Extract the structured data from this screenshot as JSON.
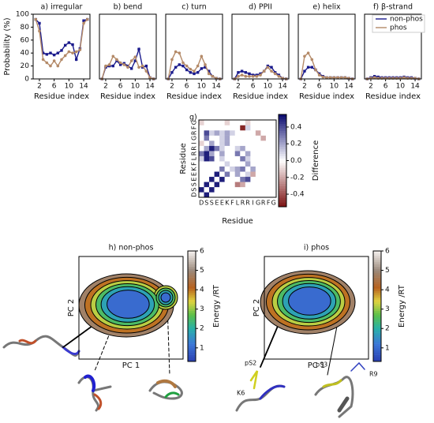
{
  "chart_data": [
    {
      "type": "line",
      "title": "a) irregular",
      "x_label": "Residue index",
      "y_label": "Probability (%)",
      "x": [
        1,
        2,
        3,
        4,
        5,
        6,
        7,
        8,
        9,
        10,
        11,
        12,
        13,
        14,
        15
      ],
      "xlim": [
        0.3,
        15.7
      ],
      "xticks": [
        2,
        6,
        10,
        14
      ],
      "ylim": [
        0,
        100
      ],
      "yticks": [
        0,
        20,
        40,
        60,
        80,
        100
      ],
      "series": [
        {
          "color": "#1a1a8c",
          "marker": "square",
          "values": [
            92,
            86,
            40,
            38,
            40,
            37,
            40,
            44,
            52,
            56,
            53,
            30,
            47,
            90,
            92
          ]
        },
        {
          "color": "#b48a68",
          "marker": "circle",
          "values": [
            92,
            74,
            30,
            25,
            20,
            28,
            20,
            30,
            36,
            42,
            40,
            42,
            45,
            86,
            92
          ]
        }
      ]
    },
    {
      "type": "line",
      "title": "b) bend",
      "x_label": "Residue index",
      "x": [
        1,
        2,
        3,
        4,
        5,
        6,
        7,
        8,
        9,
        10,
        11,
        12,
        13,
        14,
        15
      ],
      "xlim": [
        0.3,
        15.7
      ],
      "xticks": [
        2,
        6,
        10,
        14
      ],
      "ylim": [
        0,
        100
      ],
      "series": [
        {
          "color": "#1a1a8c",
          "marker": "square",
          "values": [
            0,
            18,
            20,
            20,
            28,
            22,
            24,
            20,
            16,
            28,
            46,
            18,
            20,
            2,
            0
          ]
        },
        {
          "color": "#b48a68",
          "marker": "circle",
          "values": [
            0,
            20,
            22,
            35,
            30,
            25,
            22,
            18,
            28,
            34,
            18,
            20,
            12,
            2,
            0
          ]
        }
      ]
    },
    {
      "type": "line",
      "title": "c) turn",
      "x_label": "Residue index",
      "x": [
        1,
        2,
        3,
        4,
        5,
        6,
        7,
        8,
        9,
        10,
        11,
        12,
        13,
        14,
        15
      ],
      "xlim": [
        0.3,
        15.7
      ],
      "xticks": [
        2,
        6,
        10,
        14
      ],
      "ylim": [
        0,
        100
      ],
      "series": [
        {
          "color": "#1a1a8c",
          "marker": "square",
          "values": [
            0,
            10,
            18,
            22,
            20,
            14,
            10,
            8,
            10,
            16,
            18,
            12,
            4,
            1,
            0
          ]
        },
        {
          "color": "#b48a68",
          "marker": "circle",
          "values": [
            0,
            30,
            42,
            40,
            25,
            20,
            15,
            12,
            20,
            35,
            22,
            8,
            4,
            1,
            0
          ]
        }
      ]
    },
    {
      "type": "line",
      "title": "d) PPII",
      "x_label": "Residue index",
      "x": [
        1,
        2,
        3,
        4,
        5,
        6,
        7,
        8,
        9,
        10,
        11,
        12,
        13,
        14,
        15
      ],
      "xlim": [
        0.3,
        15.7
      ],
      "xticks": [
        2,
        6,
        10,
        14
      ],
      "ylim": [
        0,
        100
      ],
      "series": [
        {
          "color": "#1a1a8c",
          "marker": "square",
          "values": [
            0,
            10,
            12,
            10,
            8,
            6,
            6,
            8,
            12,
            20,
            18,
            10,
            6,
            1,
            0
          ]
        },
        {
          "color": "#b48a68",
          "marker": "circle",
          "values": [
            0,
            4,
            6,
            4,
            4,
            4,
            4,
            6,
            12,
            18,
            12,
            8,
            4,
            1,
            0
          ]
        }
      ]
    },
    {
      "type": "line",
      "title": "e) helix",
      "x_label": "Residue index",
      "x": [
        1,
        2,
        3,
        4,
        5,
        6,
        7,
        8,
        9,
        10,
        11,
        12,
        13,
        14,
        15
      ],
      "xlim": [
        0.3,
        15.7
      ],
      "xticks": [
        2,
        6,
        10,
        14
      ],
      "ylim": [
        0,
        100
      ],
      "series": [
        {
          "color": "#1a1a8c",
          "marker": "square",
          "values": [
            0,
            12,
            18,
            18,
            14,
            8,
            4,
            2,
            2,
            2,
            2,
            2,
            2,
            1,
            0
          ]
        },
        {
          "color": "#b48a68",
          "marker": "circle",
          "values": [
            0,
            35,
            40,
            30,
            14,
            6,
            3,
            2,
            2,
            2,
            2,
            2,
            2,
            1,
            0
          ]
        }
      ]
    },
    {
      "type": "line",
      "title": "f) β-strand",
      "x_label": "Residue index",
      "legend": "upper right",
      "x": [
        1,
        2,
        3,
        4,
        5,
        6,
        7,
        8,
        9,
        10,
        11,
        12,
        13,
        14,
        15
      ],
      "xlim": [
        0.3,
        15.7
      ],
      "xticks": [
        2,
        6,
        10,
        14
      ],
      "ylim": [
        0,
        100
      ],
      "series": [
        {
          "name": "non-phos",
          "color": "#1a1a8c",
          "marker": "square",
          "values": [
            0,
            2,
            4,
            3,
            2,
            2,
            2,
            2,
            2,
            2,
            3,
            2,
            2,
            1,
            0
          ]
        },
        {
          "name": "phos",
          "color": "#b48a68",
          "marker": "circle",
          "values": [
            0,
            1,
            2,
            1,
            1,
            1,
            1,
            1,
            1,
            1,
            2,
            1,
            1,
            1,
            0
          ]
        }
      ]
    },
    {
      "type": "heatmap",
      "title": "g)",
      "x_label": "Residue",
      "y_label": "Residue",
      "colorbar_label": "Difference",
      "categories": [
        "D",
        "S",
        "S",
        "E",
        "E",
        "K",
        "F",
        "L",
        "R",
        "R",
        "I",
        "G",
        "R",
        "F",
        "G"
      ],
      "zlim": [
        -0.55,
        0.55
      ],
      "zticks": [
        -0.4,
        -0.2,
        {
          "value": 0,
          "label": "0.0"
        },
        0.2,
        0.4
      ],
      "values": [
        [
          0,
          0.5,
          0,
          0,
          0,
          0,
          0,
          0,
          0,
          0,
          0,
          0,
          0,
          0,
          0
        ],
        [
          0.5,
          0,
          0.5,
          0,
          0,
          0,
          0,
          0,
          0,
          0,
          0,
          0,
          0,
          0,
          0
        ],
        [
          0,
          0.5,
          0,
          0.5,
          0,
          0,
          0,
          -0.3,
          -0.2,
          0,
          0,
          0,
          0,
          0,
          0
        ],
        [
          0,
          0,
          0.5,
          0,
          0.5,
          0,
          0,
          0,
          0.3,
          0.4,
          0,
          0,
          0,
          0,
          0
        ],
        [
          0,
          0,
          0,
          0.5,
          0,
          0.3,
          0,
          0.2,
          0,
          0.1,
          -0.2,
          0,
          0,
          0,
          0
        ],
        [
          0,
          0,
          0,
          0,
          0.3,
          0,
          0.1,
          0.2,
          0.3,
          0,
          0.2,
          0,
          0,
          0,
          0
        ],
        [
          0,
          0,
          0,
          0,
          0,
          0.1,
          0,
          0,
          0,
          0.2,
          0,
          0,
          0,
          0,
          0
        ],
        [
          0.1,
          0.5,
          0.4,
          0,
          0.1,
          0,
          0,
          0,
          0.3,
          0.1,
          0,
          0,
          0,
          0,
          0
        ],
        [
          0.3,
          0.5,
          0.2,
          0,
          0.2,
          0,
          0,
          0.3,
          0,
          0.2,
          0,
          0,
          0,
          0,
          0
        ],
        [
          0,
          0.2,
          0.5,
          0.3,
          0.1,
          0,
          0,
          0.1,
          0.2,
          0,
          0,
          0,
          0,
          0,
          0
        ],
        [
          -0.1,
          0,
          0.2,
          0,
          0.1,
          0.2,
          0,
          0,
          0,
          0,
          0,
          0,
          0,
          0,
          0
        ],
        [
          0,
          0.3,
          0,
          0,
          0.1,
          0.2,
          0,
          0,
          0,
          0,
          0,
          0,
          -0.2,
          0,
          0
        ],
        [
          0,
          0.4,
          0.1,
          0.2,
          0.1,
          0.2,
          0.1,
          0,
          0,
          0,
          0,
          -0.2,
          0,
          0,
          0
        ],
        [
          0,
          0,
          0,
          0,
          0,
          0,
          0,
          0,
          -0.5,
          0.1,
          0,
          0,
          0,
          0,
          0
        ],
        [
          -0.1,
          0,
          0,
          0,
          0,
          -0.1,
          0,
          0,
          0,
          -0.1,
          0,
          0,
          0,
          0,
          0
        ]
      ]
    },
    {
      "type": "contour",
      "title": "h) non-phos",
      "x_label": "PC 1",
      "y_label": "PC 2",
      "colorbar_label": "Energy /RT",
      "levels": [
        1,
        1.8,
        2.5,
        3.2,
        4,
        4.8
      ],
      "zlim": [
        0.3,
        6
      ],
      "zticks": [
        1,
        2,
        3,
        4,
        5,
        6
      ]
    },
    {
      "type": "contour",
      "title": "i) phos",
      "x_label": "PC 1",
      "y_label": "PC 2",
      "colorbar_label": "Energy /RT",
      "levels": [
        1,
        1.8,
        2.5,
        3.2,
        4,
        4.8
      ],
      "zlim": [
        0.3,
        6
      ],
      "zticks": [
        1,
        2,
        3,
        4,
        5,
        6
      ],
      "annotations": [
        "pS2",
        "K6",
        "pS3",
        "R9"
      ]
    }
  ]
}
